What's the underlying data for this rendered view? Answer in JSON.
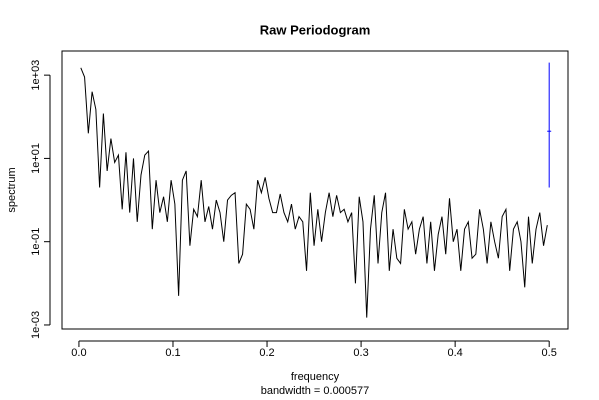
{
  "chart_data": {
    "type": "line",
    "title": "Raw Periodogram",
    "xlabel": "frequency",
    "subtitle": "bandwidth = 0.000577",
    "ylabel": "spectrum",
    "log_y": true,
    "color": "#000000",
    "x": [
      0.002,
      0.006,
      0.01,
      0.014,
      0.018,
      0.022,
      0.026,
      0.03,
      0.034,
      0.038,
      0.042,
      0.046,
      0.05,
      0.054,
      0.058,
      0.062,
      0.066,
      0.07,
      0.074,
      0.078,
      0.082,
      0.086,
      0.09,
      0.094,
      0.098,
      0.102,
      0.106,
      0.11,
      0.114,
      0.118,
      0.122,
      0.126,
      0.13,
      0.134,
      0.138,
      0.142,
      0.146,
      0.15,
      0.154,
      0.158,
      0.162,
      0.166,
      0.17,
      0.174,
      0.178,
      0.182,
      0.186,
      0.19,
      0.194,
      0.198,
      0.202,
      0.206,
      0.21,
      0.214,
      0.218,
      0.222,
      0.226,
      0.23,
      0.234,
      0.238,
      0.242,
      0.246,
      0.25,
      0.254,
      0.258,
      0.262,
      0.266,
      0.27,
      0.274,
      0.278,
      0.282,
      0.286,
      0.29,
      0.294,
      0.298,
      0.302,
      0.306,
      0.31,
      0.314,
      0.318,
      0.322,
      0.326,
      0.33,
      0.334,
      0.338,
      0.342,
      0.346,
      0.35,
      0.354,
      0.358,
      0.362,
      0.366,
      0.37,
      0.374,
      0.378,
      0.382,
      0.386,
      0.39,
      0.394,
      0.398,
      0.402,
      0.406,
      0.41,
      0.414,
      0.418,
      0.422,
      0.426,
      0.43,
      0.434,
      0.438,
      0.442,
      0.446,
      0.45,
      0.454,
      0.458,
      0.462,
      0.466,
      0.47,
      0.474,
      0.478,
      0.482,
      0.486,
      0.49,
      0.494,
      0.498
    ],
    "values": [
      1500,
      900,
      40,
      400,
      150,
      2,
      120,
      5,
      30,
      8,
      12,
      0.6,
      14,
      0.5,
      10,
      0.3,
      4,
      12,
      15,
      0.2,
      3,
      0.5,
      1.2,
      0.3,
      3,
      0.8,
      0.005,
      3,
      5,
      0.08,
      0.6,
      0.4,
      3,
      0.3,
      0.7,
      0.2,
      1,
      0.5,
      0.1,
      1,
      1.3,
      1.5,
      0.03,
      0.05,
      0.8,
      0.6,
      0.2,
      3,
      1.5,
      3.5,
      1.1,
      0.5,
      0.5,
      1.4,
      0.5,
      0.3,
      0.8,
      0.2,
      0.4,
      0.3,
      0.02,
      1.5,
      0.08,
      0.6,
      0.1,
      0.5,
      1.5,
      0.4,
      1.3,
      0.5,
      0.6,
      0.3,
      0.5,
      0.01,
      1.2,
      0.3,
      0.0015,
      0.2,
      1.3,
      0.03,
      0.5,
      1.5,
      0.02,
      0.2,
      0.04,
      0.03,
      0.6,
      0.2,
      0.3,
      0.05,
      0.2,
      0.4,
      0.03,
      0.3,
      0.02,
      0.15,
      0.4,
      0.05,
      1.1,
      0.1,
      0.2,
      0.02,
      0.2,
      0.3,
      0.04,
      0.05,
      0.6,
      0.2,
      0.03,
      0.3,
      0.1,
      0.04,
      0.4,
      0.6,
      0.02,
      0.2,
      0.3,
      0.1,
      0.008,
      0.4,
      0.03,
      0.2,
      0.5,
      0.08,
      0.25
    ],
    "ci": {
      "x": 0.5,
      "lower": 2,
      "upper": 2000,
      "center": 45,
      "color": "#0000ff"
    },
    "xlim": [
      -0.018,
      0.52
    ],
    "ylim": [
      0.0008,
      3800
    ],
    "xticks": [
      {
        "value": 0,
        "label": "0.0"
      },
      0.1,
      0.2,
      0.3,
      0.4,
      0.5
    ],
    "yticks": [
      {
        "value": 0.001,
        "label": "1e-03"
      },
      {
        "value": 0.1,
        "label": "1e-01"
      },
      {
        "value": 10,
        "label": "1e+01"
      },
      {
        "value": 1000,
        "label": "1e+03"
      }
    ]
  }
}
